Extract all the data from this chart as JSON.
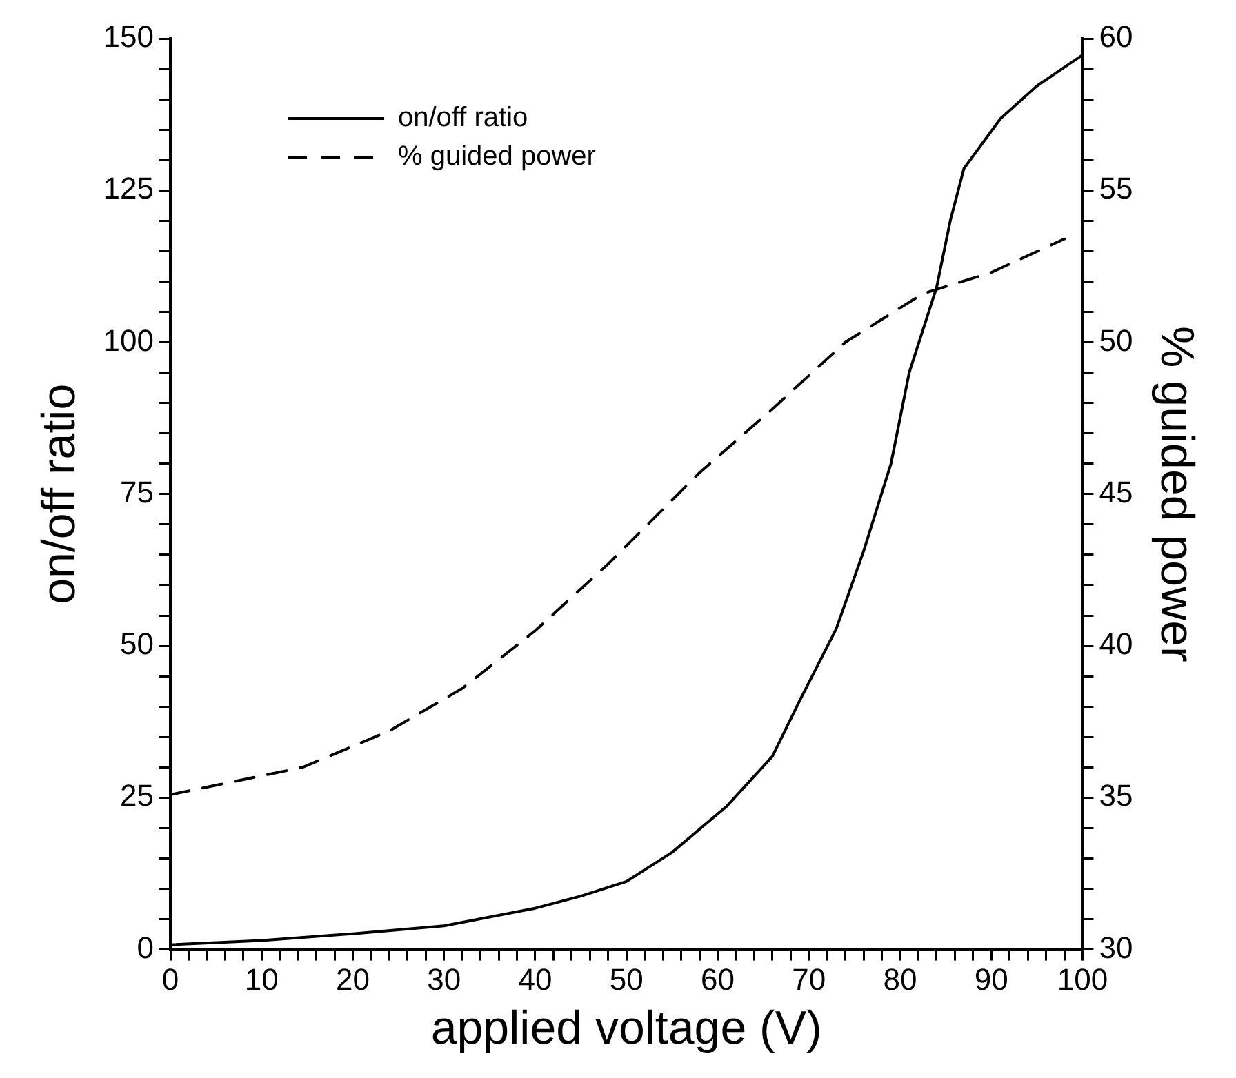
{
  "chart_data": {
    "type": "line",
    "xlabel": "applied voltage (V)",
    "ylabel": "on/off ratio",
    "y2label": "% guided power",
    "xlim": [
      0,
      100
    ],
    "ylim": [
      0,
      150
    ],
    "y2lim": [
      30,
      60
    ],
    "xticks": [
      0,
      {
        "value": 2,
        "label": null
      },
      {
        "value": 4,
        "label": null
      },
      {
        "value": 6,
        "label": null
      },
      {
        "value": 8,
        "label": null
      },
      10,
      {
        "value": 12,
        "label": null
      },
      {
        "value": 14,
        "label": null
      },
      {
        "value": 16,
        "label": null
      },
      {
        "value": 18,
        "label": null
      },
      20,
      {
        "value": 22,
        "label": null
      },
      {
        "value": 24,
        "label": null
      },
      {
        "value": 26,
        "label": null
      },
      {
        "value": 28,
        "label": null
      },
      30,
      {
        "value": 32,
        "label": null
      },
      {
        "value": 34,
        "label": null
      },
      {
        "value": 36,
        "label": null
      },
      {
        "value": 38,
        "label": null
      },
      40,
      {
        "value": 42,
        "label": null
      },
      {
        "value": 44,
        "label": null
      },
      {
        "value": 46,
        "label": null
      },
      {
        "value": 48,
        "label": null
      },
      50,
      {
        "value": 52,
        "label": null
      },
      {
        "value": 54,
        "label": null
      },
      {
        "value": 56,
        "label": null
      },
      {
        "value": 58,
        "label": null
      },
      60,
      {
        "value": 62,
        "label": null
      },
      {
        "value": 64,
        "label": null
      },
      {
        "value": 66,
        "label": null
      },
      {
        "value": 68,
        "label": null
      },
      70,
      {
        "value": 72,
        "label": null
      },
      {
        "value": 74,
        "label": null
      },
      {
        "value": 76,
        "label": null
      },
      {
        "value": 78,
        "label": null
      },
      80,
      {
        "value": 82,
        "label": null
      },
      {
        "value": 84,
        "label": null
      },
      {
        "value": 86,
        "label": null
      },
      {
        "value": 88,
        "label": null
      },
      90,
      {
        "value": 92,
        "label": null
      },
      {
        "value": 94,
        "label": null
      },
      {
        "value": 96,
        "label": null
      },
      {
        "value": 98,
        "label": null
      },
      100
    ],
    "yticks": [
      0,
      {
        "value": 5,
        "label": null
      },
      {
        "value": 10,
        "label": null
      },
      {
        "value": 15,
        "label": null
      },
      {
        "value": 20,
        "label": null
      },
      25,
      {
        "value": 30,
        "label": null
      },
      {
        "value": 35,
        "label": null
      },
      {
        "value": 40,
        "label": null
      },
      {
        "value": 45,
        "label": null
      },
      50,
      {
        "value": 55,
        "label": null
      },
      {
        "value": 60,
        "label": null
      },
      {
        "value": 65,
        "label": null
      },
      {
        "value": 70,
        "label": null
      },
      75,
      {
        "value": 80,
        "label": null
      },
      {
        "value": 85,
        "label": null
      },
      {
        "value": 90,
        "label": null
      },
      {
        "value": 95,
        "label": null
      },
      100,
      {
        "value": 105,
        "label": null
      },
      {
        "value": 110,
        "label": null
      },
      {
        "value": 115,
        "label": null
      },
      {
        "value": 120,
        "label": null
      },
      125,
      {
        "value": 130,
        "label": null
      },
      {
        "value": 135,
        "label": null
      },
      {
        "value": 140,
        "label": null
      },
      {
        "value": 145,
        "label": null
      },
      150
    ],
    "y2ticks": [
      30,
      {
        "value": 31,
        "label": null
      },
      {
        "value": 32,
        "label": null
      },
      {
        "value": 33,
        "label": null
      },
      {
        "value": 34,
        "label": null
      },
      35,
      {
        "value": 36,
        "label": null
      },
      {
        "value": 37,
        "label": null
      },
      {
        "value": 38,
        "label": null
      },
      {
        "value": 39,
        "label": null
      },
      40,
      {
        "value": 41,
        "label": null
      },
      {
        "value": 42,
        "label": null
      },
      {
        "value": 43,
        "label": null
      },
      {
        "value": 44,
        "label": null
      },
      45,
      {
        "value": 46,
        "label": null
      },
      {
        "value": 47,
        "label": null
      },
      {
        "value": 48,
        "label": null
      },
      {
        "value": 49,
        "label": null
      },
      50,
      {
        "value": 51,
        "label": null
      },
      {
        "value": 52,
        "label": null
      },
      {
        "value": 53,
        "label": null
      },
      {
        "value": 54,
        "label": null
      },
      55,
      {
        "value": 56,
        "label": null
      },
      {
        "value": 57,
        "label": null
      },
      {
        "value": 58,
        "label": null
      },
      {
        "value": 59,
        "label": null
      },
      60
    ],
    "grid": false,
    "legend": "top left",
    "marker": "none",
    "series": [
      {
        "name": "on/off ratio",
        "color": "#000000",
        "line_style": "solid",
        "x": [
          0,
          10,
          20,
          30,
          40,
          45,
          50,
          55,
          61,
          66,
          69,
          73,
          76,
          79,
          81,
          84,
          85.5,
          87,
          91,
          95,
          100
        ],
        "values": [
          0.8,
          1.5,
          2.6,
          3.9,
          6.8,
          8.8,
          11.2,
          16,
          23.6,
          31.8,
          41,
          52.8,
          65.6,
          80,
          95,
          109,
          120,
          128.6,
          136.8,
          142.2,
          147.3
        ]
      },
      {
        "name": "% guided power",
        "color": "#000000",
        "line_style": "dashed",
        "axis": "y2",
        "x": [
          0,
          14.5,
          24,
          32,
          40,
          48,
          58,
          66,
          74,
          82.5,
          90,
          98
        ],
        "values": [
          35.1,
          36,
          37.2,
          38.6,
          40.5,
          42.7,
          45.7,
          47.8,
          50,
          51.6,
          52.3,
          53.4
        ]
      }
    ]
  }
}
